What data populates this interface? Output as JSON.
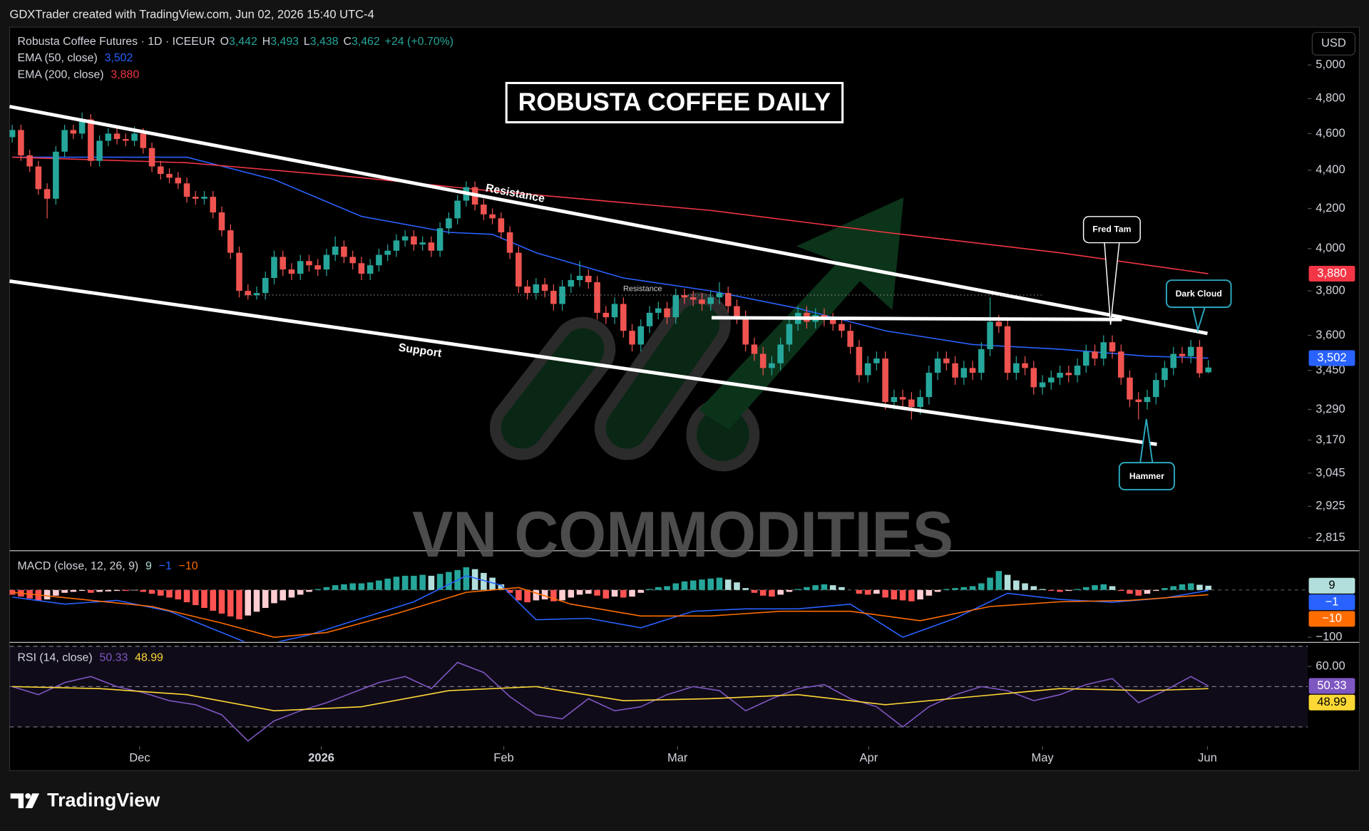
{
  "header": {
    "attribution": "GDXTrader created with TradingView.com, Jun 02, 2026 15:40 UTC-4",
    "symbol": "Robusta Coffee Futures · 1D · ICEEUR",
    "ohlc": [
      {
        "key": "O",
        "value": "3,442"
      },
      {
        "key": "H",
        "value": "3,493"
      },
      {
        "key": "L",
        "value": "3,438"
      },
      {
        "key": "C",
        "value": "3,462"
      }
    ],
    "change": "+24 (+0.70%)",
    "currency": "USD"
  },
  "annotations": {
    "resistance": "Resistance",
    "support": "Support",
    "resistance_level": "Resistance",
    "fred_tam": "Fred Tam",
    "dark_cloud": "Dark Cloud",
    "hammer": "Hammer"
  },
  "watermark": "VN COMMODITIES",
  "footer": "TradingView",
  "chart_data": [
    {
      "type": "candlestick",
      "title": "ROBUSTA COFFEE DAILY",
      "log": true,
      "grid": false,
      "up_color": "#26a69a",
      "down_color": "#ef5350",
      "xlim": [
        -0.3,
        148.4
      ],
      "ylim": [
        2774,
        5235
      ],
      "xticks": [
        {
          "value": 14.6,
          "label": "Dec"
        },
        {
          "value": 35.4,
          "label": "2026"
        },
        {
          "value": 56.3,
          "label": "Feb"
        },
        {
          "value": 76.2,
          "label": "Mar"
        },
        {
          "value": 98.1,
          "label": "Apr"
        },
        {
          "value": 118,
          "label": "May"
        },
        {
          "value": 136.9,
          "label": "Jun"
        }
      ],
      "yticks": [
        {
          "value": 5000,
          "label": "5,000"
        },
        {
          "value": 4800,
          "label": "4,800"
        },
        {
          "value": 4600,
          "label": "4,600"
        },
        {
          "value": 4400,
          "label": "4,400"
        },
        {
          "value": 4200,
          "label": "4,200"
        },
        {
          "value": 4000,
          "label": "4,000"
        },
        {
          "value": 3800,
          "label": "3,800"
        },
        {
          "value": 3600,
          "label": "3,600"
        },
        {
          "value": 3450,
          "label": "3,450"
        },
        {
          "value": 3290,
          "label": "3,290"
        },
        {
          "value": 3170,
          "label": "3,170"
        },
        {
          "value": 3045,
          "label": "3,045"
        },
        {
          "value": 2925,
          "label": "2,925"
        },
        {
          "value": 2815,
          "label": "2,815"
        }
      ],
      "open": [
        4580,
        4620,
        4480,
        4420,
        4300,
        4250,
        4500,
        4620,
        4600,
        4680,
        4450,
        4560,
        4600,
        4570,
        4560,
        4600,
        4520,
        4420,
        4380,
        4360,
        4330,
        4260,
        4250,
        4260,
        4180,
        4090,
        3980,
        3800,
        3780,
        3790,
        3860,
        3960,
        3900,
        3880,
        3940,
        3920,
        3900,
        3970,
        4010,
        3960,
        3930,
        3880,
        3920,
        3970,
        3990,
        4040,
        4060,
        4020,
        4030,
        3990,
        4100,
        4150,
        4240,
        4310,
        4220,
        4170,
        4150,
        4080,
        3980,
        3820,
        3790,
        3830,
        3800,
        3740,
        3820,
        3850,
        3870,
        3840,
        3700,
        3680,
        3740,
        3620,
        3560,
        3640,
        3700,
        3720,
        3680,
        3780,
        3770,
        3760,
        3740,
        3770,
        3790,
        3730,
        3680,
        3560,
        3520,
        3460,
        3480,
        3560,
        3650,
        3700,
        3660,
        3690,
        3670,
        3650,
        3620,
        3550,
        3430,
        3480,
        3500,
        3320,
        3340,
        3330,
        3300,
        3340,
        3440,
        3500,
        3480,
        3420,
        3460,
        3440,
        3540,
        3660,
        3640,
        3440,
        3480,
        3460,
        3380,
        3400,
        3420,
        3440,
        3430,
        3470,
        3530,
        3500,
        3570,
        3530,
        3420,
        3330,
        3320,
        3340,
        3410,
        3460,
        3520,
        3510,
        3550,
        3442
      ],
      "high": [
        4650,
        4650,
        4510,
        4450,
        4330,
        4530,
        4650,
        4650,
        4720,
        4710,
        4590,
        4630,
        4630,
        4600,
        4640,
        4630,
        4550,
        4450,
        4410,
        4390,
        4360,
        4290,
        4290,
        4290,
        4210,
        4120,
        4010,
        3830,
        3820,
        3890,
        3990,
        3990,
        3930,
        3970,
        3970,
        3950,
        4000,
        4060,
        4040,
        3990,
        3960,
        3950,
        4000,
        4020,
        4070,
        4090,
        4090,
        4060,
        4060,
        4130,
        4180,
        4270,
        4340,
        4340,
        4250,
        4200,
        4180,
        4110,
        4010,
        3850,
        3860,
        3860,
        3830,
        3850,
        3880,
        3940,
        3900,
        3870,
        3730,
        3770,
        3770,
        3650,
        3670,
        3730,
        3750,
        3750,
        3810,
        3810,
        3800,
        3790,
        3800,
        3840,
        3820,
        3760,
        3710,
        3590,
        3550,
        3510,
        3590,
        3680,
        3730,
        3730,
        3720,
        3720,
        3700,
        3680,
        3650,
        3580,
        3510,
        3530,
        3530,
        3370,
        3370,
        3360,
        3370,
        3470,
        3530,
        3530,
        3510,
        3490,
        3490,
        3570,
        3770,
        3690,
        3670,
        3510,
        3510,
        3490,
        3430,
        3450,
        3470,
        3470,
        3500,
        3560,
        3560,
        3600,
        3600,
        3560,
        3450,
        3360,
        3370,
        3440,
        3490,
        3550,
        3550,
        3580,
        3580,
        3493
      ],
      "low": [
        4550,
        4450,
        4390,
        4270,
        4150,
        4220,
        4470,
        4570,
        4570,
        4420,
        4420,
        4530,
        4540,
        4530,
        4530,
        4490,
        4390,
        4350,
        4330,
        4300,
        4230,
        4220,
        4220,
        4150,
        4060,
        3950,
        3770,
        3760,
        3760,
        3760,
        3830,
        3870,
        3850,
        3850,
        3890,
        3870,
        3870,
        3940,
        3930,
        3900,
        3850,
        3850,
        3890,
        3940,
        3960,
        4010,
        3990,
        3990,
        3960,
        3960,
        4070,
        4120,
        4210,
        4190,
        4140,
        4120,
        4050,
        3950,
        3790,
        3760,
        3760,
        3770,
        3710,
        3710,
        3790,
        3820,
        3810,
        3670,
        3650,
        3650,
        3590,
        3530,
        3530,
        3610,
        3670,
        3650,
        3650,
        3740,
        3730,
        3710,
        3710,
        3740,
        3700,
        3650,
        3530,
        3490,
        3430,
        3430,
        3450,
        3530,
        3620,
        3630,
        3630,
        3640,
        3620,
        3590,
        3520,
        3400,
        3400,
        3450,
        3290,
        3290,
        3300,
        3250,
        3270,
        3310,
        3410,
        3450,
        3390,
        3390,
        3410,
        3410,
        3510,
        3610,
        3410,
        3410,
        3430,
        3350,
        3350,
        3370,
        3390,
        3400,
        3400,
        3440,
        3470,
        3470,
        3500,
        3390,
        3300,
        3250,
        3290,
        3310,
        3380,
        3430,
        3480,
        3480,
        3420,
        3438
      ],
      "close": [
        4620,
        4480,
        4420,
        4300,
        4250,
        4500,
        4620,
        4600,
        4680,
        4450,
        4560,
        4600,
        4570,
        4560,
        4600,
        4520,
        4420,
        4380,
        4360,
        4330,
        4260,
        4250,
        4260,
        4180,
        4090,
        3980,
        3800,
        3780,
        3790,
        3860,
        3960,
        3900,
        3880,
        3940,
        3920,
        3900,
        3970,
        4010,
        3960,
        3930,
        3880,
        3920,
        3970,
        3990,
        4040,
        4060,
        4020,
        4030,
        3990,
        4100,
        4150,
        4240,
        4310,
        4220,
        4170,
        4150,
        4080,
        3980,
        3820,
        3790,
        3830,
        3800,
        3740,
        3820,
        3850,
        3870,
        3840,
        3700,
        3680,
        3740,
        3620,
        3560,
        3640,
        3700,
        3720,
        3680,
        3780,
        3770,
        3760,
        3740,
        3770,
        3790,
        3730,
        3680,
        3560,
        3520,
        3460,
        3480,
        3560,
        3650,
        3700,
        3660,
        3690,
        3670,
        3650,
        3620,
        3550,
        3430,
        3480,
        3500,
        3320,
        3340,
        3330,
        3300,
        3340,
        3440,
        3500,
        3480,
        3420,
        3460,
        3440,
        3540,
        3660,
        3640,
        3440,
        3480,
        3460,
        3380,
        3400,
        3420,
        3440,
        3430,
        3470,
        3530,
        3500,
        3570,
        3530,
        3420,
        3330,
        3320,
        3340,
        3410,
        3460,
        3520,
        3510,
        3550,
        3438,
        3462
      ],
      "series": [
        {
          "name": "EMA (50, close)",
          "color": "#2962ff",
          "legend_value": "3,502",
          "x": [
            0,
            20,
            30,
            40,
            50,
            55,
            60,
            70,
            80,
            90,
            100,
            110,
            120,
            130,
            137
          ],
          "values": [
            4470,
            4470,
            4350,
            4160,
            4080,
            4070,
            3980,
            3860,
            3800,
            3720,
            3620,
            3560,
            3540,
            3510,
            3502
          ]
        },
        {
          "name": "EMA (200, close)",
          "color": "#f23645",
          "legend_value": "3,880",
          "x": [
            0,
            20,
            40,
            55,
            70,
            80,
            100,
            120,
            137
          ],
          "values": [
            4470,
            4440,
            4360,
            4290,
            4230,
            4190,
            4080,
            3980,
            3880
          ]
        }
      ]
    },
    {
      "type": "macd",
      "title": "MACD (close, 12, 26, 9)",
      "xlim": [
        -0.3,
        148.4
      ],
      "ylim": [
        -109,
        81
      ],
      "yticks": [
        {
          "value": -100,
          "label": "−100"
        }
      ],
      "histogram": {
        "colors": [
          "#26a69a",
          "#b2dfdb",
          "#ffcdd2",
          "#ff5252"
        ],
        "legend_value": "9",
        "values": [
          -10,
          -14,
          -18,
          -22,
          -20,
          -12,
          -6,
          -4,
          -2,
          -6,
          -4,
          -3,
          -2,
          -2,
          -1,
          -4,
          -8,
          -12,
          -16,
          -20,
          -26,
          -32,
          -38,
          -44,
          -50,
          -56,
          -62,
          -54,
          -46,
          -38,
          -28,
          -22,
          -16,
          -10,
          -4,
          2,
          6,
          10,
          12,
          14,
          14,
          16,
          20,
          24,
          28,
          30,
          30,
          32,
          30,
          34,
          38,
          42,
          48,
          44,
          36,
          26,
          12,
          -6,
          -22,
          -26,
          -22,
          -20,
          -24,
          -22,
          -16,
          -10,
          -8,
          -12,
          -18,
          -14,
          -16,
          -14,
          -6,
          2,
          6,
          8,
          14,
          18,
          20,
          22,
          24,
          26,
          22,
          16,
          4,
          -6,
          -12,
          -14,
          -10,
          -4,
          2,
          6,
          10,
          12,
          10,
          6,
          0,
          -8,
          -10,
          -8,
          -16,
          -20,
          -22,
          -24,
          -20,
          -12,
          -4,
          2,
          4,
          6,
          8,
          14,
          26,
          40,
          32,
          20,
          14,
          8,
          2,
          -2,
          -4,
          -2,
          2,
          6,
          10,
          12,
          8,
          -2,
          -8,
          -12,
          -8,
          -2,
          4,
          8,
          12,
          14,
          11,
          9
        ]
      },
      "series": [
        {
          "color": "#2962ff",
          "legend_value": "−1",
          "x": [
            0,
            6,
            12,
            18,
            24,
            28,
            34,
            40,
            46,
            52,
            56,
            60,
            66,
            72,
            78,
            84,
            90,
            96,
            102,
            108,
            114,
            120,
            126,
            132,
            137
          ],
          "values": [
            -15,
            -30,
            -22,
            -45,
            -90,
            -120,
            -95,
            -60,
            -25,
            30,
            10,
            -63,
            -60,
            -80,
            -45,
            -40,
            -40,
            -30,
            -100,
            -60,
            -7,
            -20,
            -26,
            -17,
            -1
          ]
        },
        {
          "color": "#ff6d00",
          "legend_value": "−10",
          "x": [
            0,
            8,
            16,
            24,
            30,
            36,
            44,
            52,
            58,
            64,
            72,
            80,
            88,
            96,
            104,
            112,
            120,
            128,
            137
          ],
          "values": [
            -5,
            -20,
            -35,
            -70,
            -100,
            -90,
            -50,
            -5,
            5,
            -30,
            -55,
            -55,
            -45,
            -45,
            -65,
            -35,
            -25,
            -22,
            -10
          ]
        }
      ]
    },
    {
      "type": "rsi",
      "title": "RSI (14, close)",
      "xlim": [
        -0.3,
        148.4
      ],
      "ylim": [
        20.4,
        71.5
      ],
      "yticks": [
        {
          "value": 60,
          "label": "60.00"
        }
      ],
      "bands": [
        70,
        50,
        30
      ],
      "series": [
        {
          "color": "#7e57c2",
          "legend_value": "50.33",
          "x": [
            0,
            3,
            6,
            9,
            12,
            15,
            18,
            21,
            24,
            27,
            30,
            33,
            36,
            39,
            42,
            45,
            48,
            51,
            54,
            57,
            60,
            63,
            66,
            69,
            72,
            75,
            78,
            81,
            84,
            87,
            90,
            93,
            96,
            99,
            102,
            105,
            108,
            111,
            114,
            117,
            120,
            123,
            126,
            129,
            132,
            135,
            137
          ],
          "values": [
            50,
            46,
            52,
            55,
            50,
            47,
            43,
            41,
            36,
            23,
            33,
            38,
            42,
            47,
            52,
            55,
            49,
            62,
            57,
            45,
            36,
            34,
            44,
            38,
            40,
            46,
            50,
            48,
            38,
            44,
            49,
            51,
            44,
            40,
            30,
            40,
            46,
            50,
            48,
            43,
            46,
            51,
            54,
            42,
            48,
            55,
            50.33
          ]
        },
        {
          "color": "#fdd835",
          "legend_value": "48.99",
          "x": [
            0,
            10,
            20,
            30,
            40,
            50,
            60,
            70,
            80,
            90,
            100,
            110,
            120,
            130,
            137
          ],
          "values": [
            50,
            49,
            46,
            38,
            40,
            48,
            50,
            43,
            44,
            46,
            41,
            45,
            49,
            48,
            48.99
          ]
        }
      ]
    }
  ]
}
